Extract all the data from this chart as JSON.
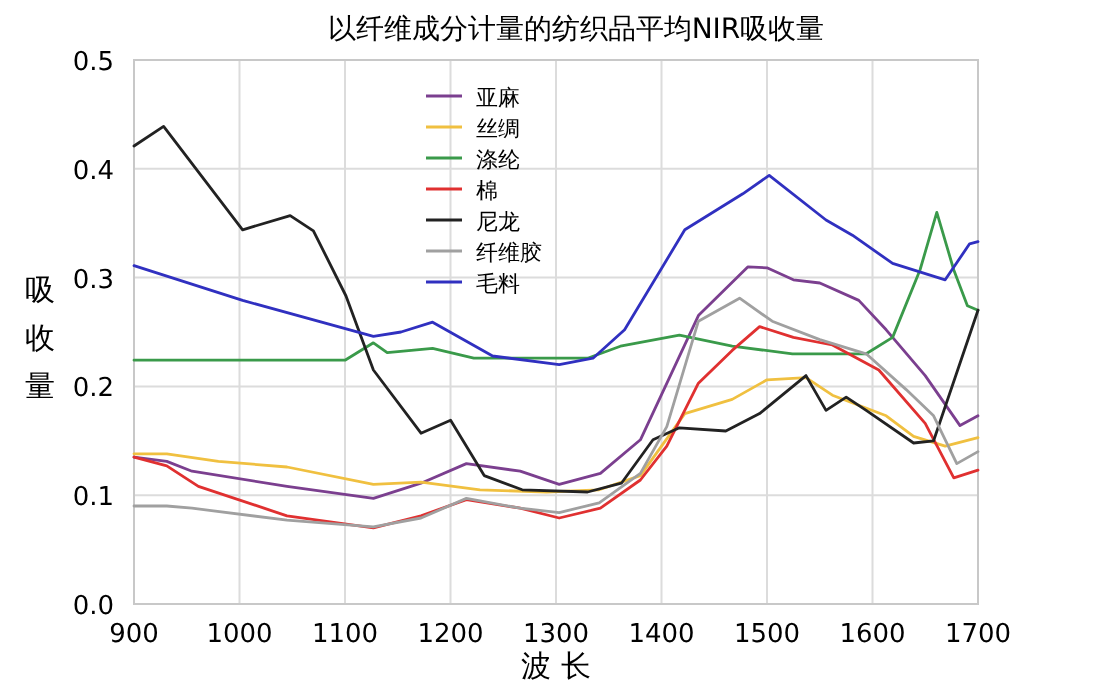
{
  "chart_data": {
    "type": "line",
    "title": "以纤维成分计量的纺织品平均NIR吸收量",
    "xlabel": "波 长",
    "ylabel": "吸收量",
    "xlim": [
      900,
      1700
    ],
    "xticks": [
      900,
      1000,
      1100,
      1200,
      1300,
      1400,
      1500,
      1600,
      1700
    ],
    "ylim": [
      0,
      0.5
    ],
    "yticks": [
      {
        "value": 0,
        "label": "0.0"
      },
      {
        "value": 0.1,
        "label": "0.1"
      },
      {
        "value": 0.2,
        "label": "0.2"
      },
      {
        "value": 0.3,
        "label": "0.3"
      },
      {
        "value": 0.4,
        "label": "0.4"
      },
      {
        "value": 0.5,
        "label": "0.5"
      }
    ],
    "grid": true,
    "legend": "top",
    "marker": "none",
    "line_style": "solid",
    "series": [
      {
        "name": "亚麻",
        "color": "#7b3f8f",
        "x": [
          900,
          931,
          955,
          1045,
          1127,
          1172,
          1215,
          1266,
          1303,
          1342,
          1380,
          1435,
          1482,
          1500,
          1525,
          1550,
          1587,
          1613,
          1650,
          1683,
          1700
        ],
        "values": [
          0.135,
          0.131,
          0.122,
          0.108,
          0.097,
          0.111,
          0.129,
          0.122,
          0.11,
          0.12,
          0.151,
          0.265,
          0.31,
          0.309,
          0.298,
          0.295,
          0.279,
          0.252,
          0.21,
          0.164,
          0.173
        ]
      },
      {
        "name": "丝绸",
        "color": "#f0c040",
        "x": [
          900,
          931,
          980,
          1045,
          1127,
          1172,
          1228,
          1291,
          1341,
          1380,
          1422,
          1467,
          1500,
          1537,
          1562,
          1613,
          1639,
          1669,
          1700
        ],
        "values": [
          0.138,
          0.138,
          0.131,
          0.126,
          0.11,
          0.112,
          0.105,
          0.103,
          0.105,
          0.118,
          0.175,
          0.188,
          0.206,
          0.208,
          0.192,
          0.173,
          0.154,
          0.145,
          0.153
        ]
      },
      {
        "name": "涤纶",
        "color": "#3a9a4a",
        "x": [
          900,
          1000,
          1100,
          1127,
          1140,
          1183,
          1222,
          1330,
          1361,
          1417,
          1467,
          1524,
          1594,
          1619,
          1645,
          1661,
          1677,
          1690,
          1700
        ],
        "values": [
          0.224,
          0.224,
          0.224,
          0.24,
          0.231,
          0.235,
          0.226,
          0.226,
          0.237,
          0.247,
          0.237,
          0.23,
          0.23,
          0.245,
          0.307,
          0.36,
          0.307,
          0.274,
          0.27
        ]
      },
      {
        "name": "棉",
        "color": "#e03030",
        "x": [
          900,
          931,
          961,
          1045,
          1127,
          1172,
          1215,
          1266,
          1303,
          1342,
          1380,
          1405,
          1435,
          1467,
          1493,
          1525,
          1562,
          1606,
          1650,
          1677,
          1700
        ],
        "values": [
          0.135,
          0.127,
          0.108,
          0.081,
          0.07,
          0.081,
          0.096,
          0.088,
          0.079,
          0.088,
          0.114,
          0.145,
          0.203,
          0.233,
          0.255,
          0.245,
          0.238,
          0.215,
          0.166,
          0.116,
          0.123
        ]
      },
      {
        "name": "尼龙",
        "color": "#222222",
        "x": [
          900,
          928,
          1003,
          1048,
          1070,
          1101,
          1127,
          1172,
          1200,
          1232,
          1268,
          1330,
          1362,
          1392,
          1417,
          1461,
          1493,
          1537,
          1556,
          1575,
          1594,
          1639,
          1658,
          1700
        ],
        "values": [
          0.421,
          0.439,
          0.344,
          0.357,
          0.343,
          0.283,
          0.215,
          0.157,
          0.169,
          0.118,
          0.105,
          0.103,
          0.111,
          0.151,
          0.162,
          0.159,
          0.175,
          0.21,
          0.178,
          0.19,
          0.178,
          0.148,
          0.15,
          0.27
        ]
      },
      {
        "name": "纤维胶",
        "color": "#a0a0a0",
        "x": [
          900,
          931,
          955,
          1045,
          1127,
          1172,
          1215,
          1266,
          1303,
          1341,
          1380,
          1405,
          1435,
          1474,
          1505,
          1550,
          1594,
          1632,
          1658,
          1680,
          1700
        ],
        "values": [
          0.09,
          0.09,
          0.088,
          0.077,
          0.071,
          0.079,
          0.097,
          0.088,
          0.084,
          0.093,
          0.12,
          0.163,
          0.26,
          0.281,
          0.26,
          0.243,
          0.23,
          0.197,
          0.173,
          0.129,
          0.14
        ]
      },
      {
        "name": "毛料",
        "color": "#3030c0",
        "x": [
          900,
          1003,
          1127,
          1153,
          1183,
          1240,
          1303,
          1335,
          1365,
          1422,
          1477,
          1502,
          1556,
          1581,
          1619,
          1669,
          1692,
          1700
        ],
        "values": [
          0.311,
          0.279,
          0.246,
          0.25,
          0.259,
          0.228,
          0.22,
          0.226,
          0.252,
          0.344,
          0.377,
          0.394,
          0.353,
          0.339,
          0.313,
          0.298,
          0.331,
          0.333
        ]
      }
    ]
  }
}
